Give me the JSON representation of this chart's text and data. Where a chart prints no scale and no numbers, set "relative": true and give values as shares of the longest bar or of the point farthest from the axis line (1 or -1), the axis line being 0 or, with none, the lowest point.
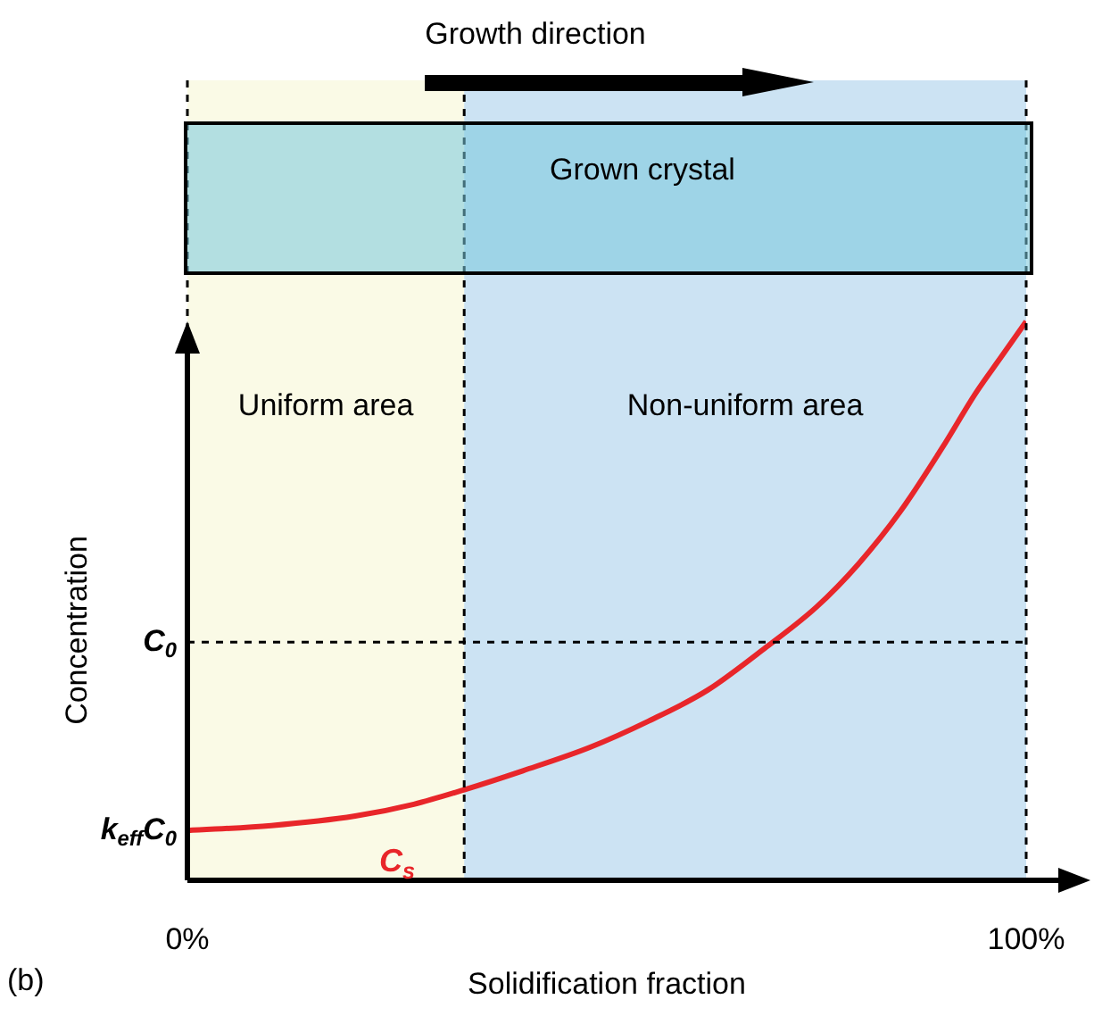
{
  "chart_data": {
    "type": "line",
    "relative": true,
    "xlabel": "Solidification fraction",
    "ylabel": "Concentration",
    "x": [
      0,
      10,
      20,
      27,
      33,
      40,
      48,
      55,
      62,
      69,
      75,
      80,
      85,
      90,
      94,
      97,
      100
    ],
    "series": [
      {
        "name": "C$_{s}$",
        "color": "#e8262a",
        "values": [
          0.089,
          0.098,
          0.115,
          0.136,
          0.162,
          0.196,
          0.238,
          0.285,
          0.34,
          0.417,
          0.489,
          0.566,
          0.66,
          0.774,
          0.872,
          0.936,
          1
        ]
      }
    ],
    "xlim": [
      0,
      100
    ],
    "xticks": [
      {
        "value": 0,
        "label": "0%"
      },
      {
        "value": 100,
        "label": "100%"
      }
    ],
    "bands": [
      {
        "axis": "x",
        "from": 0,
        "to": 33,
        "label": "Uniform area",
        "color": "#fafae6"
      },
      {
        "axis": "x",
        "from": 33,
        "to": 100,
        "label": "Non-uniform area",
        "color": "#cce3f3"
      }
    ],
    "ref_lines": [
      {
        "axis": "x",
        "value": 0,
        "line_style": "dashed"
      },
      {
        "axis": "x",
        "value": 33,
        "line_style": "dashed"
      },
      {
        "axis": "x",
        "value": 100,
        "line_style": "dashed"
      },
      {
        "axis": "y",
        "value": 0.426,
        "label": "C$_{0}$",
        "line_style": "dashed"
      }
    ],
    "annotations": [
      "Growth direction",
      "Grown crystal",
      "(b)",
      {
        "text": "k$_{eff}$C$_{0}$",
        "x": 0,
        "y": 0.089
      }
    ],
    "grid": false,
    "legend": false,
    "marker": "none",
    "line_style": "solid"
  }
}
